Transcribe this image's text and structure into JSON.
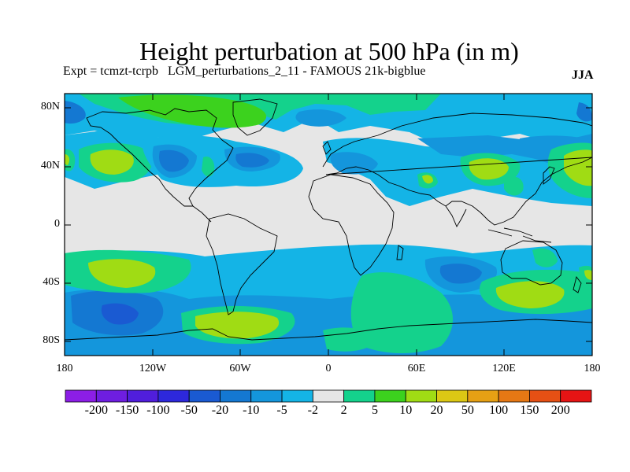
{
  "title": "Height perturbation at 500 hPa (in m)",
  "expt_label": "Expt = tcmzt-tcrpb   LGM_perturbations_2_11 - FAMOUS 21k-bigblue",
  "season": "JJA",
  "lat_ticks": [
    "80N",
    "40N",
    "0",
    "40S",
    "80S"
  ],
  "lon_ticks": [
    "180",
    "120W",
    "60W",
    "0",
    "60E",
    "120E",
    "180"
  ],
  "colorbar": {
    "labels": [
      "-200",
      "-150",
      "-100",
      "-50",
      "-20",
      "-10",
      "-5",
      "-2",
      "2",
      "5",
      "10",
      "20",
      "50",
      "100",
      "150",
      "200"
    ],
    "colors": [
      "#8c1ee6",
      "#6e1ee0",
      "#501edc",
      "#2d28dc",
      "#1a5ad2",
      "#1478d2",
      "#1496dc",
      "#14b4e6",
      "#e6e6e6",
      "#14d28c",
      "#3cd21e",
      "#a0dc14",
      "#dcc814",
      "#e6a014",
      "#e67814",
      "#e65014",
      "#e61414"
    ]
  },
  "colors": {
    "neutral": "#e6e6e6",
    "light_blue": "#14b4e6",
    "mid_blue": "#1496dc",
    "deep_blue": "#1478d2",
    "darkest_blue": "#1a5ad2",
    "green": "#14d28c",
    "bright_green": "#3cd21e",
    "yellow_green": "#a0dc14"
  }
}
